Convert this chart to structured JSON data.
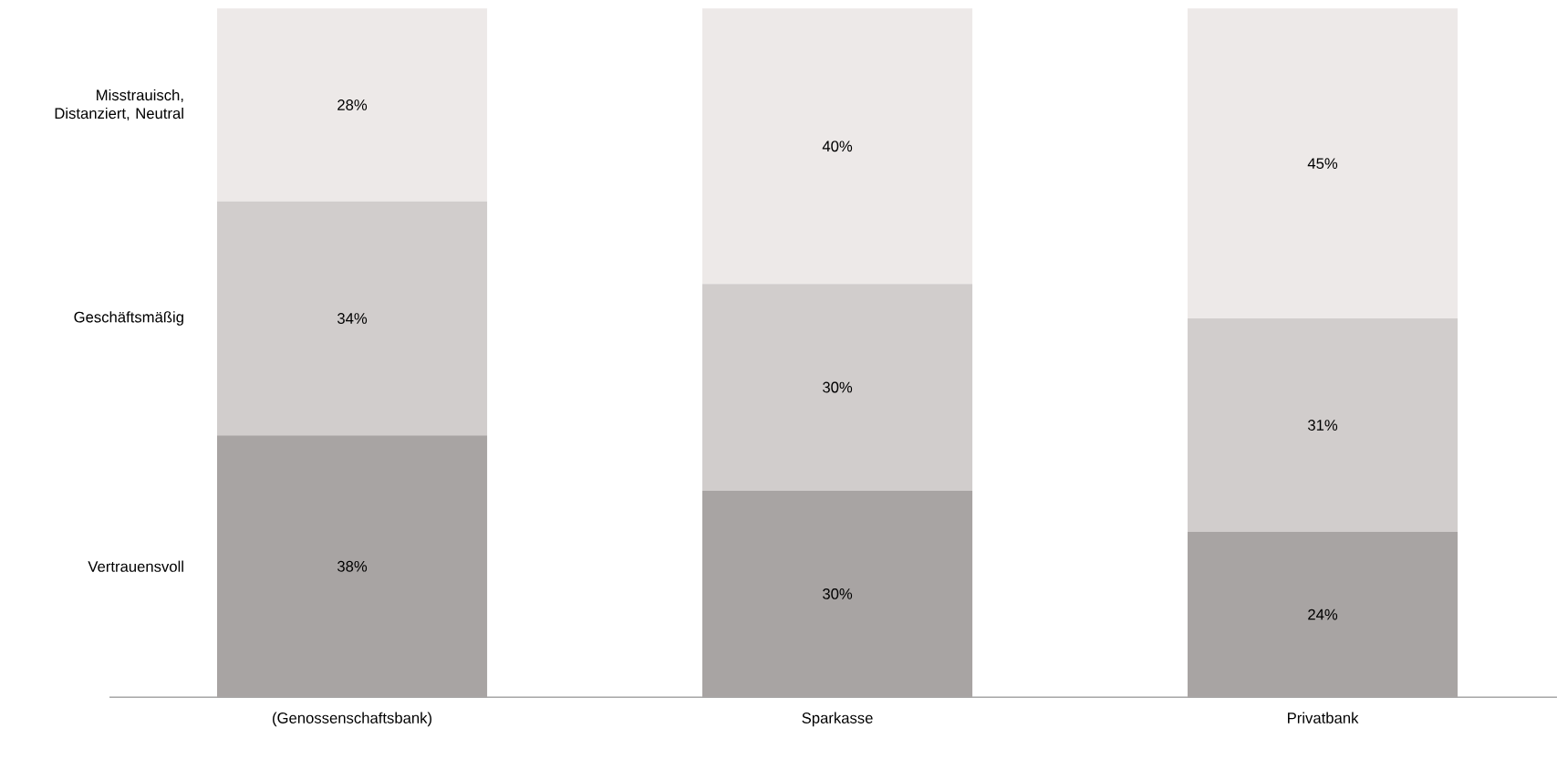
{
  "chart_data": {
    "type": "bar",
    "stacked": true,
    "categories": [
      "(Genossenschaftsbank)",
      "Sparkasse",
      "Privatbank"
    ],
    "series": [
      {
        "name": "Vertrauensvoll",
        "color": "#a8a4a3",
        "values": [
          38,
          30,
          24
        ],
        "value_labels": [
          "38%",
          "30%",
          "24%"
        ]
      },
      {
        "name": "Geschäftsmäßig",
        "color": "#d1cdcc",
        "values": [
          34,
          30,
          31
        ],
        "value_labels": [
          "34%",
          "30%",
          "31%"
        ]
      },
      {
        "name": "Misstrauisch, Distanziert, Neutral",
        "color": "#ede9e8",
        "values": [
          28,
          40,
          45
        ],
        "value_labels": [
          "28%",
          "40%",
          "45%"
        ]
      }
    ]
  }
}
